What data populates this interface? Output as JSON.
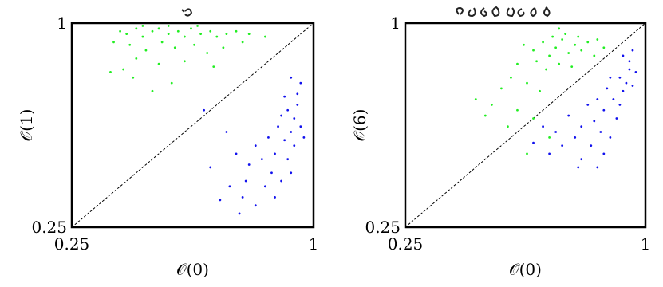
{
  "chart_data": [
    {
      "type": "scatter",
      "xlabel": "𝒪(0)",
      "ylabel": "𝒪(1)",
      "xlim": [
        0.25,
        1
      ],
      "ylim": [
        0.25,
        1
      ],
      "xticks": [
        0.25,
        1
      ],
      "yticks": [
        0.25,
        1
      ],
      "series": [
        {
          "color": "#22ee22",
          "x": [
            0.4,
            0.42,
            0.45,
            0.47,
            0.5,
            0.52,
            0.55,
            0.58,
            0.6,
            0.62,
            0.65,
            0.68,
            0.7,
            0.73,
            0.76,
            0.8,
            0.85,
            0.38,
            0.43,
            0.48,
            0.53,
            0.57,
            0.63,
            0.67,
            0.72,
            0.78,
            0.45,
            0.52,
            0.6,
            0.69,
            0.37,
            0.44,
            0.56,
            0.5,
            0.41,
            0.47,
            0.55,
            0.64
          ],
          "y": [
            0.97,
            0.96,
            0.98,
            0.95,
            0.97,
            0.98,
            0.96,
            0.97,
            0.95,
            0.98,
            0.96,
            0.97,
            0.95,
            0.96,
            0.97,
            0.96,
            0.95,
            0.93,
            0.92,
            0.9,
            0.93,
            0.91,
            0.92,
            0.89,
            0.91,
            0.93,
            0.87,
            0.85,
            0.86,
            0.84,
            0.82,
            0.8,
            0.78,
            0.75,
            0.83,
            0.99,
            0.99,
            0.99
          ]
        },
        {
          "color": "#1111ee",
          "x": [
            0.92,
            0.94,
            0.95,
            0.93,
            0.96,
            0.91,
            0.94,
            0.89,
            0.88,
            0.92,
            0.95,
            0.96,
            0.9,
            0.86,
            0.84,
            0.87,
            0.9,
            0.93,
            0.82,
            0.8,
            0.85,
            0.79,
            0.88,
            0.76,
            0.78,
            0.82,
            0.74,
            0.71,
            0.77,
            0.73,
            0.66,
            0.68,
            0.97,
            0.91,
            0.93
          ],
          "y": [
            0.68,
            0.65,
            0.7,
            0.6,
            0.62,
            0.57,
            0.55,
            0.62,
            0.52,
            0.5,
            0.74,
            0.78,
            0.66,
            0.58,
            0.5,
            0.45,
            0.42,
            0.45,
            0.55,
            0.48,
            0.4,
            0.42,
            0.36,
            0.52,
            0.36,
            0.33,
            0.4,
            0.35,
            0.3,
            0.6,
            0.68,
            0.47,
            0.58,
            0.73,
            0.8
          ]
        }
      ]
    },
    {
      "type": "scatter",
      "xlabel": "𝒪(0)",
      "ylabel": "𝒪(6)",
      "xlim": [
        0.25,
        1
      ],
      "ylim": [
        0.25,
        1
      ],
      "xticks": [
        0.25,
        1
      ],
      "yticks": [
        0.25,
        1
      ],
      "series": [
        {
          "color": "#22ee22",
          "x": [
            0.62,
            0.65,
            0.68,
            0.7,
            0.72,
            0.74,
            0.76,
            0.78,
            0.8,
            0.82,
            0.75,
            0.71,
            0.66,
            0.69,
            0.73,
            0.77,
            0.84,
            0.87,
            0.6,
            0.58,
            0.63,
            0.67,
            0.55,
            0.52,
            0.6,
            0.65,
            0.5,
            0.57,
            0.7,
            0.63,
            0.47,
            0.79,
            0.85,
            0.73
          ],
          "y": [
            0.92,
            0.9,
            0.93,
            0.88,
            0.91,
            0.94,
            0.89,
            0.92,
            0.9,
            0.93,
            0.96,
            0.95,
            0.86,
            0.83,
            0.85,
            0.84,
            0.88,
            0.91,
            0.85,
            0.8,
            0.78,
            0.75,
            0.76,
            0.7,
            0.68,
            0.65,
            0.66,
            0.62,
            0.58,
            0.52,
            0.72,
            0.95,
            0.94,
            0.98
          ]
        },
        {
          "color": "#1111ee",
          "x": [
            0.92,
            0.94,
            0.95,
            0.93,
            0.96,
            0.9,
            0.92,
            0.88,
            0.87,
            0.91,
            0.95,
            0.97,
            0.89,
            0.85,
            0.84,
            0.86,
            0.89,
            0.82,
            0.8,
            0.83,
            0.78,
            0.87,
            0.76,
            0.8,
            0.74,
            0.79,
            0.85,
            0.72,
            0.68,
            0.7,
            0.65,
            0.93,
            0.96
          ],
          "y": [
            0.8,
            0.78,
            0.83,
            0.75,
            0.77,
            0.72,
            0.7,
            0.76,
            0.68,
            0.65,
            0.86,
            0.82,
            0.8,
            0.72,
            0.64,
            0.6,
            0.58,
            0.7,
            0.62,
            0.55,
            0.58,
            0.52,
            0.66,
            0.5,
            0.55,
            0.47,
            0.47,
            0.6,
            0.62,
            0.52,
            0.56,
            0.88,
            0.9
          ]
        }
      ]
    }
  ]
}
